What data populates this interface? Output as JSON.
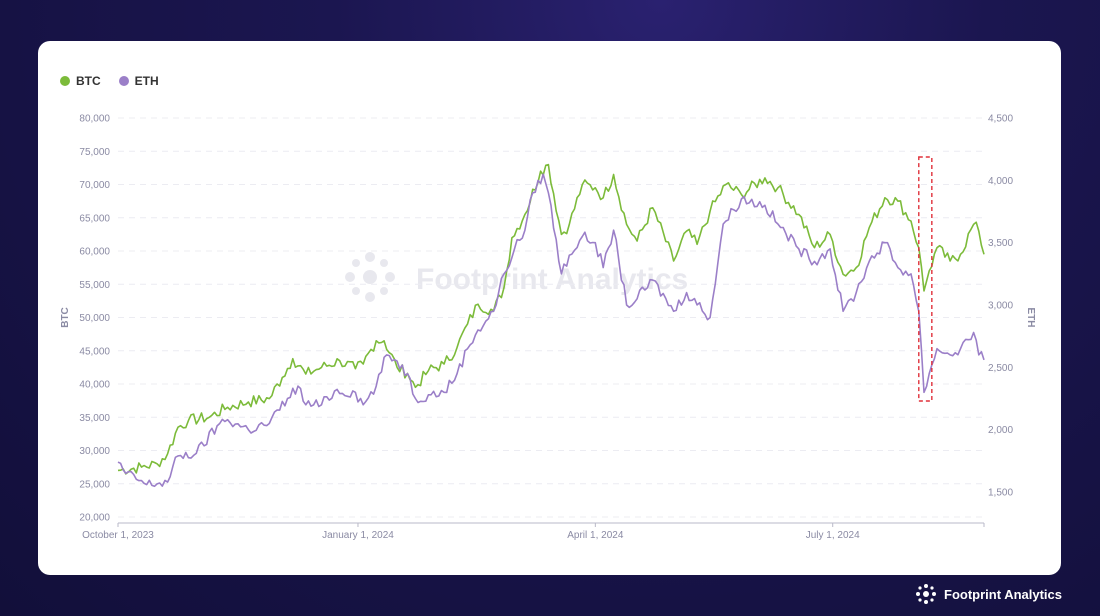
{
  "brand": {
    "name": "Footprint Analytics",
    "watermark": "Footprint Analytics"
  },
  "chart_data": {
    "type": "line",
    "legend": [
      {
        "name": "BTC",
        "color": "#7cbb3a"
      },
      {
        "name": "ETH",
        "color": "#9b7fc8"
      }
    ],
    "x_range": [
      "2023-10-01",
      "2024-08-28"
    ],
    "x_ticks": [
      {
        "date": "2023-10-01",
        "label": "October 1, 2023"
      },
      {
        "date": "2024-01-01",
        "label": "January 1, 2024"
      },
      {
        "date": "2024-04-01",
        "label": "April 1, 2024"
      },
      {
        "date": "2024-07-01",
        "label": "July 1, 2024"
      }
    ],
    "y_left": {
      "label": "BTC",
      "min": 20000,
      "max": 80000,
      "ticks": [
        "20,000",
        "25,000",
        "30,000",
        "35,000",
        "40,000",
        "45,000",
        "50,000",
        "55,000",
        "60,000",
        "65,000",
        "70,000",
        "75,000",
        "80,000"
      ]
    },
    "y_right": {
      "label": "ETH",
      "min": 1300,
      "max": 4500,
      "ticks": [
        "1,500",
        "2,000",
        "2,500",
        "3,000",
        "3,500",
        "4,000",
        "4,500"
      ]
    },
    "grid": true,
    "highlight": {
      "x_start": "2024-08-03",
      "x_end": "2024-08-08",
      "color": "#e0303a",
      "style": "dashed"
    },
    "series": [
      {
        "name": "BTC",
        "axis": "left",
        "color": "#7cbb3a",
        "points": [
          [
            "2023-10-01",
            27000
          ],
          [
            "2023-10-10",
            27500
          ],
          [
            "2023-10-16",
            28000
          ],
          [
            "2023-10-20",
            29500
          ],
          [
            "2023-10-24",
            33500
          ],
          [
            "2023-10-28",
            34500
          ],
          [
            "2023-11-05",
            35000
          ],
          [
            "2023-11-12",
            36500
          ],
          [
            "2023-11-20",
            37300
          ],
          [
            "2023-11-28",
            37800
          ],
          [
            "2023-12-03",
            41000
          ],
          [
            "2023-12-07",
            43800
          ],
          [
            "2023-12-12",
            41500
          ],
          [
            "2023-12-18",
            42500
          ],
          [
            "2023-12-25",
            43500
          ],
          [
            "2023-12-31",
            42300
          ],
          [
            "2024-01-03",
            43000
          ],
          [
            "2024-01-08",
            46500
          ],
          [
            "2024-01-11",
            46500
          ],
          [
            "2024-01-16",
            42500
          ],
          [
            "2024-01-20",
            41600
          ],
          [
            "2024-01-23",
            39500
          ],
          [
            "2024-01-28",
            42000
          ],
          [
            "2024-02-03",
            43000
          ],
          [
            "2024-02-08",
            45500
          ],
          [
            "2024-02-12",
            49000
          ],
          [
            "2024-02-16",
            52000
          ],
          [
            "2024-02-22",
            51000
          ],
          [
            "2024-02-26",
            54500
          ],
          [
            "2024-02-29",
            62000
          ],
          [
            "2024-03-05",
            65500
          ],
          [
            "2024-03-11",
            72000
          ],
          [
            "2024-03-14",
            73000
          ],
          [
            "2024-03-19",
            62500
          ],
          [
            "2024-03-22",
            64000
          ],
          [
            "2024-03-27",
            70000
          ],
          [
            "2024-04-01",
            69500
          ],
          [
            "2024-04-04",
            68000
          ],
          [
            "2024-04-08",
            71500
          ],
          [
            "2024-04-13",
            64000
          ],
          [
            "2024-04-17",
            61500
          ],
          [
            "2024-04-23",
            66500
          ],
          [
            "2024-05-01",
            58500
          ],
          [
            "2024-05-06",
            63000
          ],
          [
            "2024-05-10",
            61000
          ],
          [
            "2024-05-15",
            66000
          ],
          [
            "2024-05-21",
            70000
          ],
          [
            "2024-05-27",
            68500
          ],
          [
            "2024-06-05",
            71000
          ],
          [
            "2024-06-10",
            69500
          ],
          [
            "2024-06-18",
            65500
          ],
          [
            "2024-06-24",
            60500
          ],
          [
            "2024-06-30",
            62500
          ],
          [
            "2024-07-05",
            56500
          ],
          [
            "2024-07-10",
            57500
          ],
          [
            "2024-07-15",
            63500
          ],
          [
            "2024-07-21",
            68000
          ],
          [
            "2024-07-26",
            67500
          ],
          [
            "2024-07-31",
            64500
          ],
          [
            "2024-08-03",
            60500
          ],
          [
            "2024-08-05",
            54000
          ],
          [
            "2024-08-07",
            57000
          ],
          [
            "2024-08-10",
            60500
          ],
          [
            "2024-08-15",
            58500
          ],
          [
            "2024-08-19",
            59500
          ],
          [
            "2024-08-24",
            64000
          ],
          [
            "2024-08-26",
            63000
          ],
          [
            "2024-08-28",
            59500
          ]
        ]
      },
      {
        "name": "ETH",
        "axis": "right",
        "color": "#9b7fc8",
        "points": [
          [
            "2023-10-01",
            1740
          ],
          [
            "2023-10-04",
            1650
          ],
          [
            "2023-10-12",
            1560
          ],
          [
            "2023-10-20",
            1580
          ],
          [
            "2023-10-24",
            1790
          ],
          [
            "2023-10-31",
            1810
          ],
          [
            "2023-11-09",
            2050
          ],
          [
            "2023-11-12",
            2080
          ],
          [
            "2023-11-20",
            2000
          ],
          [
            "2023-11-28",
            2050
          ],
          [
            "2023-12-05",
            2250
          ],
          [
            "2023-12-09",
            2350
          ],
          [
            "2023-12-12",
            2200
          ],
          [
            "2023-12-18",
            2200
          ],
          [
            "2023-12-23",
            2310
          ],
          [
            "2023-12-31",
            2300
          ],
          [
            "2024-01-03",
            2200
          ],
          [
            "2024-01-08",
            2350
          ],
          [
            "2024-01-12",
            2600
          ],
          [
            "2024-01-16",
            2550
          ],
          [
            "2024-01-20",
            2450
          ],
          [
            "2024-01-23",
            2250
          ],
          [
            "2024-01-28",
            2280
          ],
          [
            "2024-02-03",
            2300
          ],
          [
            "2024-02-08",
            2450
          ],
          [
            "2024-02-12",
            2650
          ],
          [
            "2024-02-16",
            2800
          ],
          [
            "2024-02-22",
            2950
          ],
          [
            "2024-02-26",
            3250
          ],
          [
            "2024-03-01",
            3450
          ],
          [
            "2024-03-05",
            3600
          ],
          [
            "2024-03-08",
            3900
          ],
          [
            "2024-03-12",
            4050
          ],
          [
            "2024-03-14",
            3900
          ],
          [
            "2024-03-19",
            3250
          ],
          [
            "2024-03-22",
            3400
          ],
          [
            "2024-03-27",
            3550
          ],
          [
            "2024-04-01",
            3500
          ],
          [
            "2024-04-04",
            3300
          ],
          [
            "2024-04-08",
            3600
          ],
          [
            "2024-04-13",
            3000
          ],
          [
            "2024-04-17",
            3050
          ],
          [
            "2024-04-23",
            3200
          ],
          [
            "2024-05-01",
            2950
          ],
          [
            "2024-05-06",
            3100
          ],
          [
            "2024-05-15",
            2900
          ],
          [
            "2024-05-20",
            3650
          ],
          [
            "2024-05-27",
            3850
          ],
          [
            "2024-06-05",
            3800
          ],
          [
            "2024-06-10",
            3650
          ],
          [
            "2024-06-18",
            3450
          ],
          [
            "2024-06-24",
            3350
          ],
          [
            "2024-06-30",
            3450
          ],
          [
            "2024-07-05",
            2950
          ],
          [
            "2024-07-10",
            3100
          ],
          [
            "2024-07-15",
            3350
          ],
          [
            "2024-07-21",
            3500
          ],
          [
            "2024-07-26",
            3300
          ],
          [
            "2024-07-31",
            3250
          ],
          [
            "2024-08-03",
            2950
          ],
          [
            "2024-08-05",
            2300
          ],
          [
            "2024-08-07",
            2450
          ],
          [
            "2024-08-10",
            2650
          ],
          [
            "2024-08-15",
            2600
          ],
          [
            "2024-08-19",
            2650
          ],
          [
            "2024-08-24",
            2780
          ],
          [
            "2024-08-26",
            2600
          ],
          [
            "2024-08-28",
            2560
          ]
        ]
      }
    ]
  }
}
